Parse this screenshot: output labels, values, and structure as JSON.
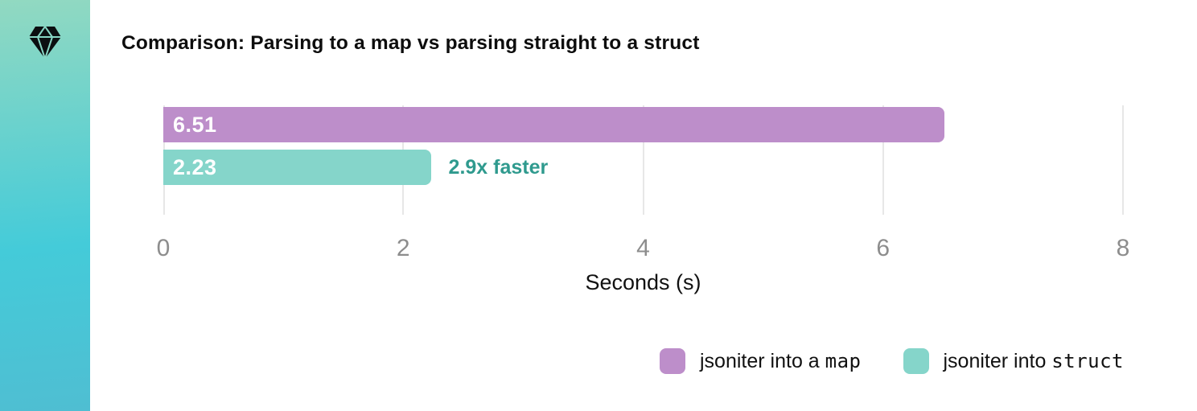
{
  "sidebar": {
    "icon": "gem-icon",
    "gradient_top": "#92d9c1",
    "gradient_mid": "#44cbd9",
    "gradient_bottom": "#4fbed2",
    "icon_color": "#0b0f11"
  },
  "chart_data": {
    "type": "bar",
    "orientation": "horizontal",
    "title": "Comparison: Parsing to a map vs parsing straight to a struct",
    "xlabel": "Seconds (s)",
    "xlim": [
      0,
      8
    ],
    "xticks": [
      "0",
      "2",
      "4",
      "6",
      "8"
    ],
    "grid": true,
    "legend_position": "bottom-right",
    "series": [
      {
        "name": "jsoniter into a map",
        "value": 6.51,
        "label": "6.51",
        "color": "#bd8eca"
      },
      {
        "name": "jsoniter into struct",
        "value": 2.23,
        "label": "2.23",
        "color": "#85d5ca"
      }
    ],
    "annotation": {
      "text": "2.9x faster",
      "color": "#2f9a8e"
    }
  },
  "legend": {
    "items": [
      {
        "text_regular": "jsoniter into a ",
        "text_mono": "map",
        "color": "#bd8eca"
      },
      {
        "text_regular": "jsoniter into ",
        "text_mono": "struct",
        "color": "#85d5ca"
      }
    ]
  },
  "colors": {
    "grid": "#e7e7e7",
    "tick_label": "#8d8d8d",
    "bar_value_label": "#ffffff",
    "title": "#0d0d0d"
  }
}
